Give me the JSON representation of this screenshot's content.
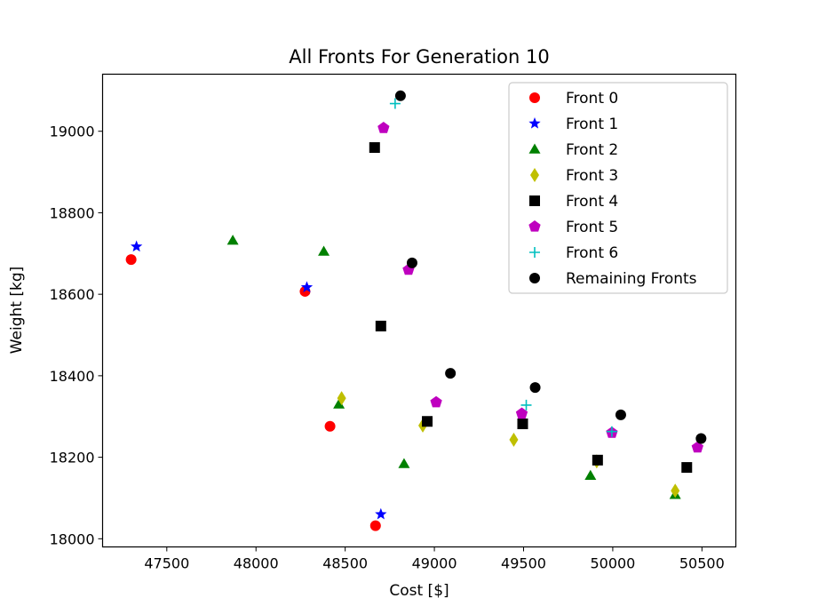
{
  "chart_data": {
    "type": "scatter",
    "title": "All Fronts For Generation 10",
    "xlabel": "Cost [$]",
    "ylabel": "Weight [kg]",
    "xlim": [
      47140,
      50690
    ],
    "ylim": [
      17980,
      19140
    ],
    "xticks": [
      47500,
      48000,
      48500,
      49000,
      49500,
      50000,
      50500
    ],
    "yticks": [
      18000,
      18200,
      18400,
      18600,
      18800,
      19000
    ],
    "grid": false,
    "legend_position": "top-right",
    "series": [
      {
        "name": "Front 0",
        "color": "#ff0000",
        "marker": "circle",
        "points": [
          [
            47300,
            18685
          ],
          [
            48275,
            18607
          ],
          [
            48415,
            18276
          ],
          [
            48670,
            18032
          ]
        ]
      },
      {
        "name": "Front 1",
        "color": "#0000ff",
        "marker": "star",
        "points": [
          [
            47330,
            18717
          ],
          [
            48285,
            18617
          ],
          [
            48700,
            18060
          ]
        ]
      },
      {
        "name": "Front 2",
        "color": "#008000",
        "marker": "triangle",
        "points": [
          [
            47870,
            18732
          ],
          [
            48380,
            18705
          ],
          [
            48465,
            18330
          ],
          [
            48830,
            18184
          ],
          [
            49875,
            18155
          ],
          [
            50350,
            18108
          ]
        ]
      },
      {
        "name": "Front 3",
        "color": "#bfbf00",
        "marker": "thin-diamond",
        "points": [
          [
            48480,
            18345
          ],
          [
            48935,
            18278
          ],
          [
            49445,
            18243
          ],
          [
            49910,
            18190
          ],
          [
            50350,
            18118
          ]
        ]
      },
      {
        "name": "Front 4",
        "color": "#000000",
        "marker": "square",
        "points": [
          [
            48665,
            18960
          ],
          [
            48700,
            18522
          ],
          [
            48960,
            18288
          ],
          [
            49495,
            18282
          ],
          [
            49915,
            18193
          ],
          [
            50415,
            18175
          ]
        ]
      },
      {
        "name": "Front 5",
        "color": "#bf00bf",
        "marker": "pentagon",
        "points": [
          [
            48715,
            19008
          ],
          [
            48855,
            18660
          ],
          [
            49010,
            18335
          ],
          [
            49490,
            18307
          ],
          [
            49995,
            18260
          ],
          [
            50475,
            18224
          ]
        ]
      },
      {
        "name": "Front 6",
        "color": "#00bfbf",
        "marker": "plus",
        "points": [
          [
            48780,
            19068
          ],
          [
            49515,
            18328
          ],
          [
            49995,
            18263
          ]
        ]
      },
      {
        "name": "Remaining Fronts",
        "color": "#000000",
        "marker": "circle",
        "points": [
          [
            48810,
            19087
          ],
          [
            48875,
            18677
          ],
          [
            49090,
            18406
          ],
          [
            49565,
            18371
          ],
          [
            50045,
            18304
          ],
          [
            50495,
            18246
          ]
        ]
      }
    ]
  }
}
